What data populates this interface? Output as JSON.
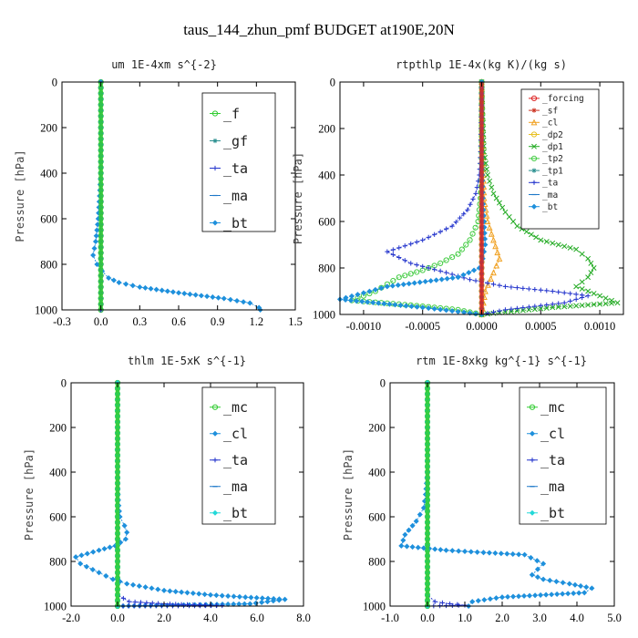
{
  "title": "taus_144_zhun_pmf  BUDGET at190E,20N",
  "chart_data": [
    {
      "type": "line",
      "title": "um  1E-4xm s^{-2}",
      "ylabel": "Pressure [hPa]",
      "xlim": [
        -0.3,
        1.5
      ],
      "ylim": [
        1000,
        0
      ],
      "xticks": [
        "-0.3",
        "0.0",
        "0.3",
        "0.6",
        "0.9",
        "1.2",
        "1.5"
      ],
      "yticks": [
        "0",
        "200",
        "400",
        "600",
        "800",
        "1000"
      ],
      "series": [
        {
          "name": "_f",
          "color": "#33cc33",
          "marker": "o",
          "x": [
            0,
            0,
            0,
            0,
            0,
            0,
            0,
            0,
            0,
            0,
            0
          ],
          "y": [
            0,
            100,
            200,
            300,
            400,
            500,
            600,
            700,
            800,
            900,
            1000
          ]
        },
        {
          "name": "_gf",
          "color": "#2a8f8f",
          "marker": "*",
          "x": [
            0,
            0,
            0,
            0,
            0,
            0,
            0,
            0,
            0,
            0,
            0
          ],
          "y": [
            0,
            100,
            200,
            300,
            400,
            500,
            600,
            700,
            800,
            900,
            1000
          ]
        },
        {
          "name": "_ta",
          "color": "#2233cc",
          "marker": "+",
          "x": [
            0,
            0,
            0,
            0,
            0,
            0,
            0,
            0,
            0,
            0,
            0
          ],
          "y": [
            0,
            100,
            200,
            300,
            400,
            500,
            600,
            700,
            800,
            900,
            1000
          ]
        },
        {
          "name": "_ma",
          "color": "#1e78c8",
          "marker": "-",
          "x": [
            0,
            0,
            0,
            0,
            0,
            0,
            0,
            0,
            0,
            0,
            0
          ],
          "y": [
            0,
            100,
            200,
            300,
            400,
            500,
            600,
            700,
            800,
            900,
            1000
          ]
        },
        {
          "name": "_bt",
          "color": "#1e90dc",
          "marker": "d",
          "x": [
            0,
            0,
            0,
            0,
            0,
            -0.01,
            -0.02,
            -0.04,
            -0.06,
            -0.03,
            0.01,
            0.06,
            0.14,
            0.3,
            0.6,
            0.95,
            1.15,
            1.22,
            1.23
          ],
          "y": [
            0,
            100,
            200,
            300,
            400,
            500,
            600,
            700,
            760,
            800,
            830,
            860,
            880,
            900,
            925,
            950,
            970,
            990,
            1000
          ]
        }
      ]
    },
    {
      "type": "line",
      "title": "rtpthlp  1E-4x(kg K)/(kg s)",
      "ylabel": "Pressure [hPa]",
      "xlim": [
        -0.0012,
        0.0012
      ],
      "ylim": [
        1000,
        0
      ],
      "xticks": [
        "-0.0010",
        "-0.0005",
        "0.0000",
        "0.0005",
        "0.0010"
      ],
      "yticks": [
        "0",
        "200",
        "400",
        "600",
        "800",
        "1000"
      ],
      "series": [
        {
          "name": "_forcing",
          "color": "#dd2222",
          "marker": "o",
          "x": [
            0,
            0,
            0,
            0,
            0,
            0,
            0,
            0,
            0,
            0,
            0
          ],
          "y": [
            0,
            100,
            200,
            300,
            400,
            500,
            600,
            700,
            800,
            900,
            1000
          ]
        },
        {
          "name": "_sf",
          "color": "#cc3322",
          "marker": "*",
          "x": [
            0,
            0,
            0,
            0,
            0,
            0,
            0,
            0,
            0,
            0,
            0
          ],
          "y": [
            0,
            100,
            200,
            300,
            400,
            500,
            600,
            700,
            800,
            900,
            1000
          ]
        },
        {
          "name": "_cl",
          "color": "#f0a020",
          "marker": "^",
          "x": [
            0,
            1e-05,
            2e-05,
            5e-05,
            0.0001,
            0.00015,
            0.0001,
            3e-05,
            0
          ],
          "y": [
            0,
            300,
            500,
            600,
            680,
            760,
            820,
            900,
            1000
          ]
        },
        {
          "name": "_dp2",
          "color": "#e8c020",
          "marker": "o",
          "x": [
            0,
            0,
            0,
            0,
            0,
            0,
            0
          ],
          "y": [
            0,
            200,
            400,
            600,
            800,
            900,
            1000
          ]
        },
        {
          "name": "_dp1",
          "color": "#22aa22",
          "marker": "x",
          "x": [
            0,
            2e-05,
            5e-05,
            0.0001,
            0.0002,
            0.0003,
            0.0005,
            0.0008,
            0.0009,
            0.00095,
            0.0009,
            0.0008,
            0.001,
            0.00115,
            0.0006,
            0.0002,
            0
          ],
          "y": [
            0,
            300,
            400,
            480,
            560,
            620,
            680,
            720,
            760,
            800,
            840,
            880,
            920,
            950,
            970,
            990,
            1000
          ]
        },
        {
          "name": "_tp2",
          "color": "#44cc44",
          "marker": "o",
          "x": [
            0,
            0,
            -1e-05,
            -3e-05,
            -0.0001,
            -0.0002,
            -0.00035,
            -0.0005,
            -0.0007,
            -0.0008,
            -0.0009,
            -0.0011,
            -0.0006,
            -0.0002,
            0
          ],
          "y": [
            0,
            400,
            500,
            600,
            680,
            740,
            780,
            810,
            840,
            870,
            900,
            940,
            960,
            980,
            1000
          ]
        },
        {
          "name": "_tp1",
          "color": "#2a8f8f",
          "marker": "*",
          "x": [
            0,
            0,
            0,
            0,
            0,
            0,
            0
          ],
          "y": [
            0,
            200,
            400,
            600,
            800,
            900,
            1000
          ]
        },
        {
          "name": "_ta",
          "color": "#2233cc",
          "marker": "+",
          "x": [
            0,
            -1e-05,
            -2e-05,
            -5e-05,
            -0.00012,
            -0.00025,
            -0.0005,
            -0.0008,
            -0.0006,
            -0.0003,
            -0.0001,
            0.0002,
            0.0006,
            0.0009,
            0.0007,
            0.0002,
            0
          ],
          "y": [
            0,
            300,
            400,
            480,
            550,
            620,
            680,
            730,
            780,
            820,
            850,
            880,
            900,
            920,
            950,
            980,
            1000
          ]
        },
        {
          "name": "_ma",
          "color": "#1e78c8",
          "marker": "-",
          "x": [
            0,
            0,
            0,
            0,
            0,
            0,
            0
          ],
          "y": [
            0,
            200,
            400,
            600,
            800,
            900,
            1000
          ]
        },
        {
          "name": "_bt",
          "color": "#1e90dc",
          "marker": "d",
          "x": [
            0,
            0,
            1e-05,
            2e-05,
            3e-05,
            1e-05,
            -2e-05,
            -0.0002,
            -0.0008,
            -0.0012,
            -0.0005,
            0
          ],
          "y": [
            0,
            300,
            500,
            600,
            700,
            760,
            800,
            840,
            880,
            935,
            970,
            1000
          ]
        }
      ]
    },
    {
      "type": "line",
      "title": "thlm  1E-5xK s^{-1}",
      "ylabel": "Pressure [hPa]",
      "xlim": [
        -2.0,
        8.0
      ],
      "ylim": [
        1000,
        0
      ],
      "xticks": [
        "-2.0",
        "0.0",
        "2.0",
        "4.0",
        "6.0",
        "8.0"
      ],
      "yticks": [
        "0",
        "200",
        "400",
        "600",
        "800",
        "1000"
      ],
      "series": [
        {
          "name": "_mc",
          "color": "#33cc33",
          "marker": "o",
          "x": [
            0,
            0,
            0,
            0,
            0,
            0,
            0,
            0,
            0,
            0,
            0
          ],
          "y": [
            0,
            100,
            200,
            300,
            400,
            500,
            600,
            700,
            800,
            900,
            1000
          ]
        },
        {
          "name": "_cl",
          "color": "#1e90dc",
          "marker": "d",
          "x": [
            0,
            0,
            0,
            0.02,
            0.05,
            0.1,
            0.3,
            0.4,
            0.35,
            -0.1,
            -0.8,
            -1.8,
            -1.6,
            -0.8,
            -0.2,
            0.4,
            2.0,
            4.0,
            5.5,
            7.2,
            5.7,
            0
          ],
          "y": [
            0,
            200,
            400,
            500,
            550,
            600,
            640,
            670,
            700,
            730,
            750,
            780,
            810,
            850,
            880,
            900,
            930,
            950,
            960,
            970,
            990,
            1000
          ]
        },
        {
          "name": "_ta",
          "color": "#2233cc",
          "marker": "+",
          "x": [
            0,
            0,
            0,
            0,
            0,
            0,
            0,
            0.5,
            2.0,
            3.5,
            4.5,
            0
          ],
          "y": [
            0,
            200,
            400,
            600,
            800,
            900,
            950,
            980,
            990,
            995,
            998,
            1000
          ]
        },
        {
          "name": "_ma",
          "color": "#1e78c8",
          "marker": "-",
          "x": [
            0,
            0,
            0,
            0,
            0,
            0,
            0
          ],
          "y": [
            0,
            200,
            400,
            600,
            800,
            900,
            1000
          ]
        },
        {
          "name": "_bt",
          "color": "#22d8d8",
          "marker": "d",
          "x": [
            0,
            0,
            0,
            0,
            0,
            0,
            0
          ],
          "y": [
            0,
            200,
            400,
            600,
            800,
            900,
            1000
          ]
        }
      ]
    },
    {
      "type": "line",
      "title": "rtm  1E-8xkg kg^{-1} s^{-1}",
      "ylabel": "Pressure [hPa]",
      "xlim": [
        -1.0,
        5.0
      ],
      "ylim": [
        1000,
        0
      ],
      "xticks": [
        "-1.0",
        "0.0",
        "1.0",
        "2.0",
        "3.0",
        "4.0",
        "5.0"
      ],
      "yticks": [
        "0",
        "200",
        "400",
        "600",
        "800",
        "1000"
      ],
      "series": [
        {
          "name": "_mc",
          "color": "#33cc33",
          "marker": "o",
          "x": [
            0,
            0,
            0,
            0,
            0,
            0,
            0,
            0,
            0,
            0,
            0
          ],
          "y": [
            0,
            100,
            200,
            300,
            400,
            500,
            600,
            700,
            800,
            900,
            1000
          ]
        },
        {
          "name": "_cl",
          "color": "#1e90dc",
          "marker": "d",
          "x": [
            0,
            0,
            0,
            -0.05,
            -0.1,
            -0.3,
            -0.6,
            -0.7,
            0.5,
            1.5,
            2.6,
            3.1,
            2.8,
            3.1,
            3.8,
            4.4,
            4.2,
            2.0,
            1.2,
            1.1
          ],
          "y": [
            0,
            200,
            400,
            500,
            560,
            620,
            680,
            730,
            750,
            760,
            770,
            810,
            860,
            880,
            900,
            920,
            940,
            960,
            980,
            1000
          ]
        },
        {
          "name": "_ta",
          "color": "#2233cc",
          "marker": "+",
          "x": [
            0,
            0,
            0,
            0,
            0,
            0,
            0.2,
            0.6,
            1.0,
            0
          ],
          "y": [
            0,
            200,
            400,
            600,
            800,
            950,
            980,
            990,
            996,
            1000
          ]
        },
        {
          "name": "_ma",
          "color": "#1e78c8",
          "marker": "-",
          "x": [
            0,
            0,
            0,
            0,
            0,
            0,
            0
          ],
          "y": [
            0,
            200,
            400,
            600,
            800,
            900,
            1000
          ]
        },
        {
          "name": "_bt",
          "color": "#22d8d8",
          "marker": "d",
          "x": [
            0,
            0,
            0,
            0,
            0,
            0,
            0
          ],
          "y": [
            0,
            200,
            400,
            600,
            800,
            900,
            1000
          ]
        }
      ]
    }
  ]
}
